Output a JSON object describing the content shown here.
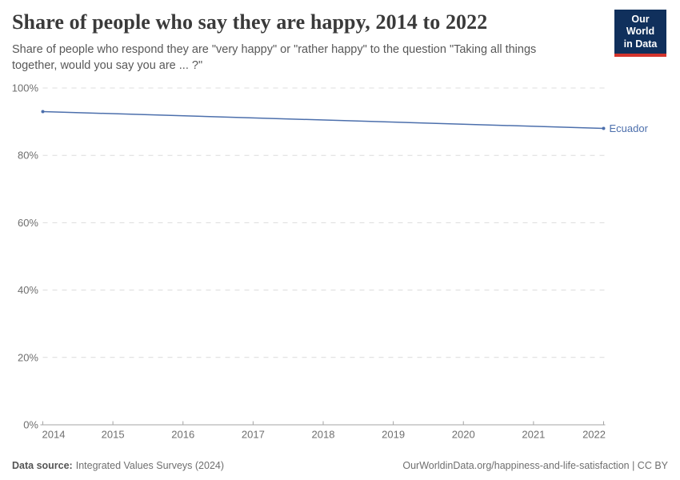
{
  "header": {
    "title": "Share of people who say they are happy, 2014 to 2022",
    "subtitle": "Share of people who respond they are \"very happy\" or \"rather happy\" to the question \"Taking all things together, would you say you are ... ?\"",
    "logo": {
      "line1": "Our World",
      "line2": "in Data"
    }
  },
  "chart_data": {
    "type": "line",
    "title": "Share of people who say they are happy, 2014 to 2022",
    "xlabel": "",
    "ylabel": "",
    "xlim": [
      2014,
      2022
    ],
    "ylim": [
      0,
      100
    ],
    "xticks": [
      2014,
      2015,
      2016,
      2017,
      2018,
      2019,
      2020,
      2021,
      2022
    ],
    "yticks": [
      0,
      20,
      40,
      60,
      80,
      100
    ],
    "ytick_suffix": "%",
    "grid": "horizontal-dashed",
    "legend_position": "end-of-line-label",
    "series": [
      {
        "name": "Ecuador",
        "x": [
          2014,
          2022
        ],
        "values": [
          93,
          88
        ],
        "color": "#4c6fac"
      }
    ]
  },
  "footer": {
    "source_label": "Data source:",
    "source_value": "Integrated Values Surveys (2024)",
    "citation": "OurWorldinData.org/happiness-and-life-satisfaction | CC BY"
  },
  "colors": {
    "accent_line": "#4c6fac",
    "grid": "#dcdcdc",
    "axis": "#a5a5a5",
    "tick_text": "#6f6f6f",
    "logo_bg": "#10305c",
    "logo_bar": "#d4342c"
  }
}
